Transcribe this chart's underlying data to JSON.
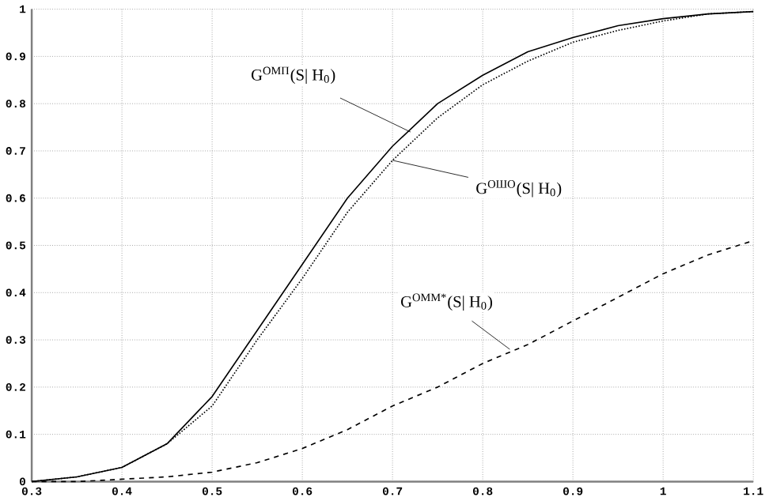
{
  "chart_data": {
    "type": "line",
    "xlim": [
      0.3,
      1.1
    ],
    "ylim": [
      0,
      1
    ],
    "xticks": [
      0.3,
      0.4,
      0.5,
      0.6,
      0.7,
      0.8,
      0.9,
      1,
      1.1
    ],
    "yticks": [
      0,
      0.1,
      0.2,
      0.3,
      0.4,
      0.5,
      0.6,
      0.7,
      0.8,
      0.9,
      1
    ],
    "grid": true,
    "marker": "none",
    "x": [
      0.3,
      0.35,
      0.4,
      0.45,
      0.5,
      0.55,
      0.6,
      0.65,
      0.7,
      0.75,
      0.8,
      0.85,
      0.9,
      0.95,
      1.0,
      1.05,
      1.1
    ],
    "series": [
      {
        "color": "#000000",
        "line_style": "solid",
        "values": [
          0.0,
          0.01,
          0.03,
          0.08,
          0.18,
          0.32,
          0.46,
          0.6,
          0.71,
          0.8,
          0.86,
          0.91,
          0.94,
          0.965,
          0.98,
          0.99,
          0.995
        ]
      },
      {
        "color": "#000000",
        "line_style": "dotted",
        "values": [
          0.0,
          0.01,
          0.03,
          0.08,
          0.16,
          0.3,
          0.43,
          0.57,
          0.68,
          0.77,
          0.84,
          0.89,
          0.93,
          0.955,
          0.975,
          0.99,
          0.995
        ]
      },
      {
        "color": "#000000",
        "line_style": "dashed",
        "values": [
          0.0,
          0.0,
          0.005,
          0.01,
          0.02,
          0.04,
          0.07,
          0.11,
          0.16,
          0.2,
          0.25,
          0.29,
          0.34,
          0.39,
          0.44,
          0.48,
          0.51
        ]
      }
    ],
    "annotations": [
      {
        "text": "G$^{ОМП}$(S| H$_{0}$)",
        "x": 0.72,
        "y": 0.74
      },
      {
        "text": "G$^{ОШО}$(S| H$_{0}$)",
        "x": 0.7,
        "y": 0.68
      },
      {
        "text": "G$^{ОММ*}$(S| H$_{0}$)",
        "x": 0.83,
        "y": 0.28
      }
    ]
  }
}
